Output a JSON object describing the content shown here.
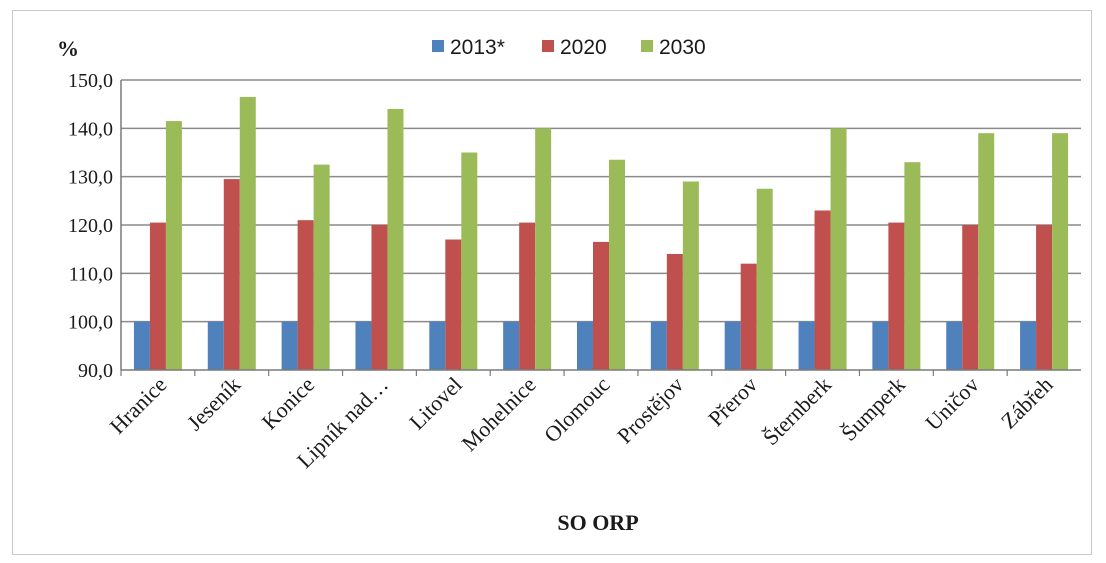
{
  "chart_data": {
    "type": "bar",
    "ylabel": "%",
    "xlabel": "SO ORP",
    "ylim": [
      90,
      150
    ],
    "yticks": [
      90,
      100,
      110,
      120,
      130,
      140,
      150
    ],
    "yticks_labels": [
      "90,0",
      "100,0",
      "110,0",
      "120,0",
      "130,0",
      "140,0",
      "150,0"
    ],
    "grid": true,
    "legend_position": "top-center",
    "categories": [
      "Hranice",
      "Jeseník",
      "Konice",
      "Lipník nad…",
      "Litovel",
      "Mohelnice",
      "Olomouc",
      "Prostějov",
      "Přerov",
      "Šternberk",
      "Šumperk",
      "Uničov",
      "Zábřeh"
    ],
    "series": [
      {
        "name": "2013*",
        "color": "#4f81bd",
        "values": [
          100,
          100,
          100,
          100,
          100,
          100,
          100,
          100,
          100,
          100,
          100,
          100,
          100
        ]
      },
      {
        "name": "2020",
        "color": "#c0504d",
        "values": [
          120.5,
          129.5,
          121,
          120,
          117,
          120.5,
          116.5,
          114,
          112,
          123,
          120.5,
          120,
          120
        ]
      },
      {
        "name": "2030",
        "color": "#9bbb59",
        "values": [
          141.5,
          146.5,
          132.5,
          144,
          135,
          140,
          133.5,
          129,
          127.5,
          140,
          133,
          139,
          139
        ]
      }
    ]
  }
}
